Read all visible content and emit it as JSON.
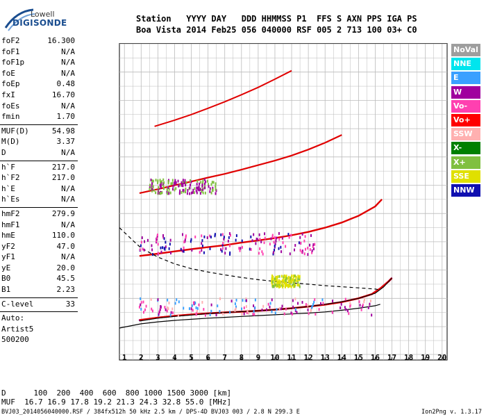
{
  "logo": {
    "line1": "Lowell",
    "line2": "DIGISONDE"
  },
  "header": {
    "line1": "Station   YYYY DAY   DDD HHMMSS P1  FFS S AXN PPS IGA PS",
    "line2": "Boa Vista 2014 Feb25 056 040000 RSF 005 2 713 100 03+ C0"
  },
  "params": {
    "group1": [
      {
        "k": "foF2",
        "v": "16.300"
      },
      {
        "k": "foF1",
        "v": "N/A"
      },
      {
        "k": "foF1p",
        "v": "N/A"
      },
      {
        "k": "foE",
        "v": "N/A"
      },
      {
        "k": "foEp",
        "v": "0.48"
      },
      {
        "k": "fxI",
        "v": "16.70"
      },
      {
        "k": "foEs",
        "v": "N/A"
      },
      {
        "k": "fmin",
        "v": "1.70"
      }
    ],
    "group2": [
      {
        "k": "MUF(D)",
        "v": "54.98"
      },
      {
        "k": "M(D)",
        "v": "3.37"
      },
      {
        "k": "D",
        "v": "N/A"
      }
    ],
    "group3": [
      {
        "k": "h`F",
        "v": "217.0"
      },
      {
        "k": "h`F2",
        "v": "217.0"
      },
      {
        "k": "h`E",
        "v": "N/A"
      },
      {
        "k": "h`Es",
        "v": "N/A"
      }
    ],
    "group4": [
      {
        "k": "hmF2",
        "v": "279.9"
      },
      {
        "k": "hmF1",
        "v": "N/A"
      },
      {
        "k": "hmE",
        "v": "110.0"
      },
      {
        "k": "yF2",
        "v": "47.0"
      },
      {
        "k": "yF1",
        "v": "N/A"
      },
      {
        "k": "yE",
        "v": "20.0"
      },
      {
        "k": "B0",
        "v": "45.5"
      },
      {
        "k": "B1",
        "v": "2.23"
      }
    ],
    "group5": [
      {
        "k": "C-level",
        "v": "33"
      }
    ],
    "auto": [
      "Auto:",
      "Artist5",
      "500200"
    ]
  },
  "legend": [
    {
      "label": "NoVal",
      "color": "#9e9e9e"
    },
    {
      "label": "NNE",
      "color": "#00e5ee"
    },
    {
      "label": "E",
      "color": "#3aa0ff"
    },
    {
      "label": "W",
      "color": "#a0009e"
    },
    {
      "label": "Vo-",
      "color": "#ff40b0"
    },
    {
      "label": "Vo+",
      "color": "#ff0000"
    },
    {
      "label": "SSW",
      "color": "#ffb0b0"
    },
    {
      "label": "X-",
      "color": "#008000"
    },
    {
      "label": "X+",
      "color": "#80c040"
    },
    {
      "label": "SSE",
      "color": "#e0e000"
    },
    {
      "label": "NNW",
      "color": "#1010b0"
    }
  ],
  "footer": {
    "d_row": "D      100  200  400  600  800 1000 1500 3000 [km]",
    "muf_row": "MUF  16.7 16.9 17.8 19.2 21.3 24.3 32.8 55.0 [MHz]",
    "file_info": "BVJ03_2014056040000.RSF / 384fx512h 50 kHz 2.5 km / DPS-4D BVJ03 003 / 2.8 N 299.3 E",
    "version": "Ion2Png v. 1.3.17"
  },
  "chart_data": {
    "type": "scatter",
    "title": "",
    "xlabel": "",
    "ylabel": "",
    "xlim": [
      0.7,
      20.3
    ],
    "ylim": [
      80,
      1200
    ],
    "x_ticks": [
      1,
      2,
      3,
      4,
      5,
      6,
      7,
      8,
      9,
      10,
      11,
      12,
      13,
      14,
      15,
      16,
      17,
      18,
      19,
      20
    ],
    "y_ticks": [
      80,
      200,
      300,
      400,
      500,
      600,
      700,
      800,
      900,
      1000,
      1100,
      1200
    ],
    "grid": true,
    "legend_placement": "right",
    "series": [
      {
        "color": "#ff0000",
        "points": [
          [
            1.9,
            223
          ],
          [
            3,
            232
          ],
          [
            4,
            238
          ],
          [
            5,
            243
          ],
          [
            6,
            247
          ],
          [
            7,
            250
          ],
          [
            8,
            253
          ],
          [
            9,
            256
          ],
          [
            10,
            260
          ],
          [
            11,
            265
          ],
          [
            12,
            271
          ],
          [
            13,
            278
          ],
          [
            14,
            287
          ],
          [
            15,
            300
          ],
          [
            15.8,
            315
          ],
          [
            16.3,
            335
          ],
          [
            16.8,
            360
          ],
          [
            17,
            372
          ]
        ]
      },
      {
        "color": "#ff0000",
        "points": [
          [
            1.9,
            450
          ],
          [
            3,
            458
          ],
          [
            4,
            466
          ],
          [
            5,
            474
          ],
          [
            6,
            481
          ],
          [
            7,
            488
          ],
          [
            8,
            497
          ],
          [
            9,
            505
          ],
          [
            10,
            513
          ],
          [
            11,
            523
          ],
          [
            12,
            535
          ],
          [
            13,
            550
          ],
          [
            14,
            568
          ],
          [
            15,
            592
          ],
          [
            16,
            625
          ],
          [
            16.4,
            650
          ]
        ]
      },
      {
        "color": "#ff0000",
        "points": [
          [
            1.9,
            672
          ],
          [
            3,
            686
          ],
          [
            4,
            700
          ],
          [
            5,
            713
          ],
          [
            6,
            727
          ],
          [
            7,
            740
          ],
          [
            8,
            755
          ],
          [
            9,
            771
          ],
          [
            10,
            787
          ],
          [
            11,
            805
          ],
          [
            12,
            826
          ],
          [
            13,
            850
          ],
          [
            14,
            878
          ]
        ]
      },
      {
        "color": "#ff0000",
        "points": [
          [
            2.8,
            908
          ],
          [
            4,
            930
          ],
          [
            5,
            950
          ],
          [
            6,
            972
          ],
          [
            7,
            995
          ],
          [
            8,
            1020
          ],
          [
            9,
            1046
          ],
          [
            10,
            1075
          ],
          [
            11,
            1105
          ]
        ]
      },
      {
        "color": "#000000",
        "points": [
          [
            0.7,
            195
          ],
          [
            2,
            210
          ],
          [
            3,
            217
          ],
          [
            4,
            222
          ],
          [
            5,
            226
          ],
          [
            6,
            230
          ],
          [
            7,
            233
          ],
          [
            8,
            236
          ],
          [
            9,
            239
          ],
          [
            10,
            242
          ],
          [
            11,
            245
          ],
          [
            12,
            248
          ],
          [
            13,
            252
          ],
          [
            14,
            258
          ],
          [
            15,
            265
          ],
          [
            16,
            274
          ],
          [
            16.3,
            279
          ]
        ]
      },
      {
        "color": "#000000",
        "points": [
          [
            1.9,
            220
          ],
          [
            3,
            230
          ],
          [
            4,
            236
          ],
          [
            5,
            241
          ],
          [
            6,
            246
          ],
          [
            7,
            250
          ],
          [
            8,
            253
          ],
          [
            9,
            256
          ],
          [
            10,
            260
          ],
          [
            11,
            265
          ],
          [
            12,
            271
          ],
          [
            13,
            279
          ],
          [
            14,
            288
          ],
          [
            15,
            300
          ],
          [
            16,
            318
          ],
          [
            16.5,
            340
          ],
          [
            17,
            372
          ]
        ]
      },
      {
        "color": "#000000",
        "points": [
          [
            0.7,
            550
          ],
          [
            1.5,
            505
          ],
          [
            2,
            478
          ],
          [
            3,
            446
          ],
          [
            4,
            422
          ],
          [
            5,
            405
          ],
          [
            6,
            393
          ],
          [
            7,
            383
          ],
          [
            8,
            374
          ],
          [
            9,
            366
          ],
          [
            10,
            360
          ],
          [
            11,
            355
          ],
          [
            12,
            350
          ],
          [
            13,
            345
          ],
          [
            14,
            341
          ],
          [
            15,
            337
          ],
          [
            16,
            333
          ],
          [
            16.3,
            330
          ]
        ]
      }
    ]
  }
}
